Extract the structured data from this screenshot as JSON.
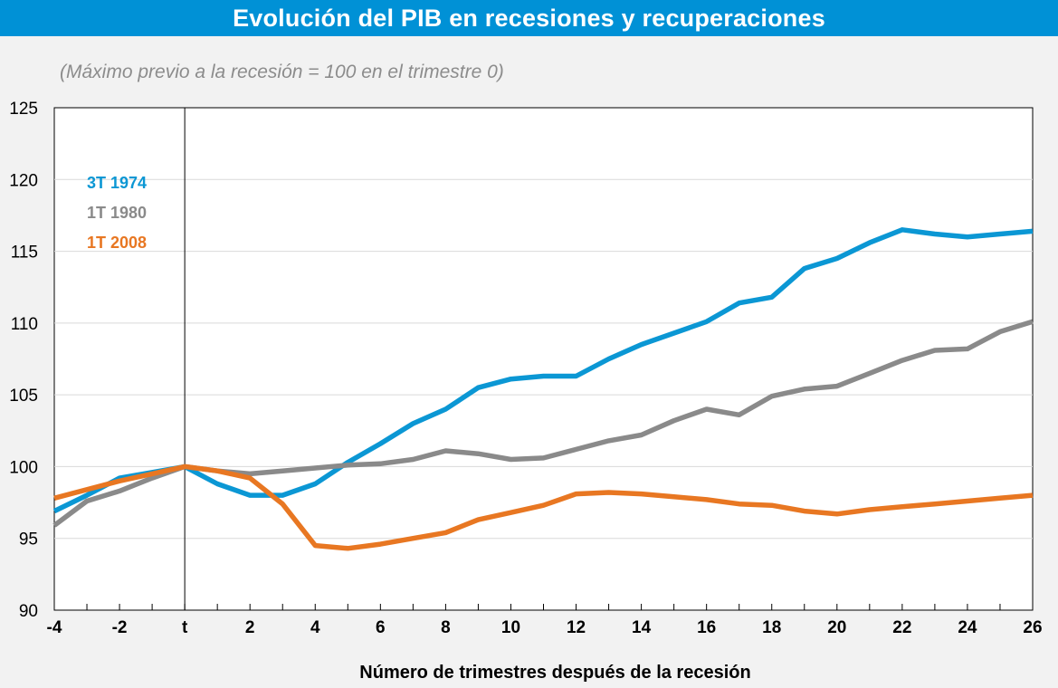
{
  "title": "Evolución del PIB en recesiones y recuperaciones",
  "subtitle": "(Máximo previo a la recesión = 100 en el trimestre 0)",
  "chart_data": {
    "type": "line",
    "title": "Evolución del PIB en recesiones y recuperaciones",
    "subtitle": "(Máximo previo a la recesión = 100 en el trimestre 0)",
    "xlabel": "Número de trimestres después de la recesión",
    "ylabel": "",
    "xlim": [
      -4,
      26
    ],
    "ylim": [
      90,
      125
    ],
    "yticks": [
      90,
      95,
      100,
      105,
      110,
      115,
      120,
      125
    ],
    "xtick_values": [
      -4,
      -2,
      0,
      2,
      4,
      6,
      8,
      10,
      12,
      14,
      16,
      18,
      20,
      22,
      24,
      26
    ],
    "xtick_labels": [
      "-4",
      "-2",
      "t",
      "2",
      "4",
      "6",
      "8",
      "10",
      "12",
      "14",
      "16",
      "18",
      "20",
      "22",
      "24",
      "26"
    ],
    "grid": true,
    "legend_position": "top-left",
    "x": [
      -4,
      -3,
      -2,
      -1,
      0,
      1,
      2,
      3,
      4,
      5,
      6,
      7,
      8,
      9,
      10,
      11,
      12,
      13,
      14,
      15,
      16,
      17,
      18,
      19,
      20,
      21,
      22,
      23,
      24,
      25,
      26
    ],
    "series": [
      {
        "name": "3T 1974",
        "color": "#0b97d4",
        "values": [
          96.9,
          98.0,
          99.2,
          99.6,
          100.0,
          98.8,
          98.0,
          98.0,
          98.8,
          100.3,
          101.6,
          103.0,
          104.0,
          105.5,
          106.1,
          106.3,
          106.3,
          107.5,
          108.5,
          109.3,
          110.1,
          111.4,
          111.8,
          113.8,
          114.5,
          115.6,
          116.5,
          116.2,
          116.0,
          116.2,
          116.4
        ]
      },
      {
        "name": "1T 1980",
        "color": "#8a8a8a",
        "values": [
          95.9,
          97.6,
          98.3,
          99.2,
          100.0,
          99.7,
          99.5,
          99.7,
          99.9,
          100.1,
          100.2,
          100.5,
          101.1,
          100.9,
          100.5,
          100.6,
          101.2,
          101.8,
          102.2,
          103.2,
          104.0,
          103.6,
          104.9,
          105.4,
          105.6,
          106.5,
          107.4,
          108.1,
          108.2,
          109.4,
          110.1
        ]
      },
      {
        "name": "1T 2008",
        "color": "#e87722",
        "values": [
          97.8,
          98.4,
          99.0,
          99.5,
          100.0,
          99.7,
          99.2,
          97.4,
          94.5,
          94.3,
          94.6,
          95.0,
          95.4,
          96.3,
          96.8,
          97.3,
          98.1,
          98.2,
          98.1,
          97.9,
          97.7,
          97.4,
          97.3,
          96.9,
          96.7,
          97.0,
          97.2,
          97.4,
          97.6,
          97.8,
          98.0
        ]
      }
    ],
    "vertical_reference_line_x": 0
  }
}
